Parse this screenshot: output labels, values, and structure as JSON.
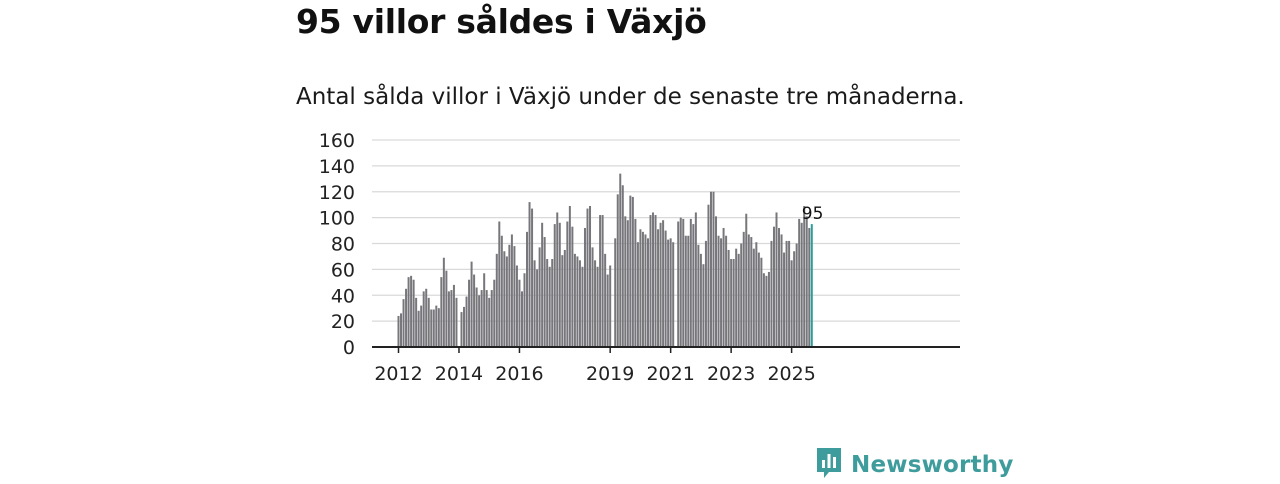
{
  "title": "95 villor såldes i Växjö",
  "subtitle": "Antal sålda villor i Växjö under de senaste tre månaderna.",
  "brand": {
    "name": "Newsworthy",
    "icon": "bar-chart-logo-icon"
  },
  "colors": {
    "bar": "#77767b",
    "highlight": "#2a9d9c",
    "grid": "#d9d9d9",
    "axis": "#222222",
    "brand": "#3e9c9c"
  },
  "chart_data": {
    "type": "bar",
    "title": "95 villor såldes i Växjö",
    "xlabel": "",
    "ylabel": "",
    "ylim": [
      0,
      160
    ],
    "yticks": [
      "0",
      "20",
      "40",
      "60",
      "80",
      "100",
      "120",
      "140",
      "160"
    ],
    "xticks": [
      "2012",
      "2014",
      "2016",
      "2019",
      "2021",
      "2023",
      "2025"
    ],
    "start": "2012-01",
    "gaps": [
      {
        "after": 24,
        "months": 1
      },
      {
        "after": 84,
        "months": 1
      },
      {
        "after": 108,
        "months": 1
      }
    ],
    "highlight_label": "95",
    "values": [
      24,
      26,
      37,
      45,
      54,
      55,
      52,
      38,
      28,
      32,
      43,
      45,
      38,
      29,
      29,
      32,
      30,
      54,
      69,
      59,
      43,
      44,
      48,
      38,
      27,
      31,
      39,
      52,
      66,
      56,
      46,
      40,
      44,
      57,
      44,
      38,
      44,
      52,
      72,
      97,
      86,
      74,
      70,
      79,
      87,
      78,
      63,
      52,
      43,
      57,
      89,
      112,
      107,
      67,
      60,
      77,
      96,
      85,
      68,
      62,
      68,
      95,
      104,
      96,
      71,
      75,
      97,
      109,
      93,
      72,
      70,
      67,
      62,
      92,
      107,
      109,
      77,
      67,
      62,
      102,
      102,
      72,
      56,
      63,
      84,
      118,
      134,
      125,
      101,
      98,
      117,
      116,
      99,
      81,
      91,
      89,
      87,
      84,
      102,
      104,
      102,
      91,
      96,
      98,
      90,
      83,
      84,
      81,
      97,
      100,
      99,
      86,
      86,
      99,
      95,
      104,
      79,
      72,
      64,
      82,
      110,
      120,
      120,
      101,
      86,
      84,
      92,
      86,
      75,
      68,
      68,
      76,
      72,
      80,
      89,
      103,
      87,
      85,
      76,
      81,
      73,
      69,
      57,
      55,
      58,
      82,
      93,
      104,
      92,
      87,
      73,
      82,
      82,
      67,
      74,
      80,
      99,
      96,
      109,
      101,
      92,
      95
    ]
  }
}
